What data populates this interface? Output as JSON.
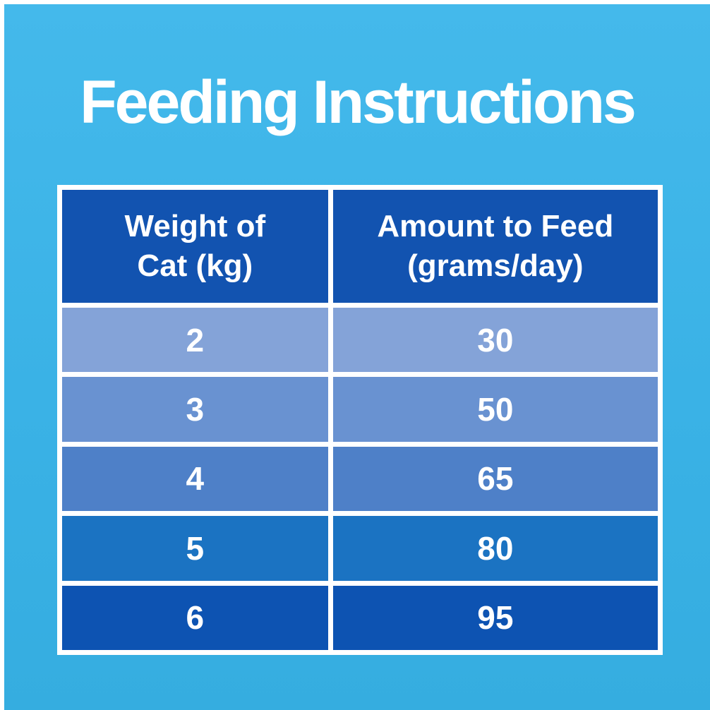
{
  "title": "Feeding Instructions",
  "colors": {
    "background_top": "#44b9eb",
    "background_bottom": "#35ade0",
    "frame_border": "#ffffff",
    "table_grid": "#ffffff",
    "header_bg": "#1253b0",
    "text": "#ffffff",
    "row_bgs": [
      "#84a3d8",
      "#6992d1",
      "#4e80c8",
      "#1b73c2",
      "#0d53b2"
    ]
  },
  "table": {
    "header_weight": "Weight of\nCat (kg)",
    "header_amount": "Amount to Feed\n(grams/day)",
    "rows": [
      {
        "weight": "2",
        "amount": "30"
      },
      {
        "weight": "3",
        "amount": "50"
      },
      {
        "weight": "4",
        "amount": "65"
      },
      {
        "weight": "5",
        "amount": "80"
      },
      {
        "weight": "6",
        "amount": "95"
      }
    ]
  },
  "chart_data": {
    "type": "table",
    "title": "Feeding Instructions",
    "columns": [
      "Weight of Cat (kg)",
      "Amount to Feed (grams/day)"
    ],
    "categories": [
      2,
      3,
      4,
      5,
      6
    ],
    "values": [
      30,
      50,
      65,
      80,
      95
    ],
    "xlabel": "Weight of Cat (kg)",
    "ylabel": "Amount to Feed (grams/day)"
  }
}
